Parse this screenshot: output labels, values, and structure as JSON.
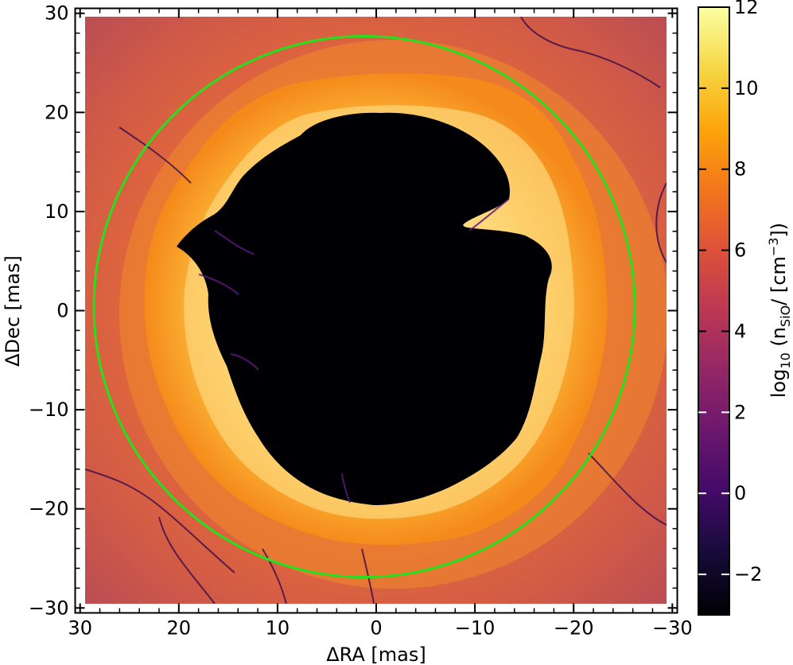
{
  "chart_data": {
    "type": "heatmap",
    "title": "",
    "xlabel": "ΔRA [mas]",
    "ylabel": "ΔDec [mas]",
    "xlim": [
      30.5,
      -30.5
    ],
    "ylim": [
      -30.5,
      30.5
    ],
    "x_ticks": [
      30,
      20,
      10,
      0,
      -10,
      -20,
      -30
    ],
    "x_tick_labels": [
      "30",
      "20",
      "10",
      "0",
      "−10",
      "−20",
      "−30"
    ],
    "y_ticks": [
      30,
      20,
      10,
      0,
      -10,
      -20,
      -30
    ],
    "y_tick_labels": [
      "30",
      "20",
      "10",
      "0",
      "−10",
      "−20",
      "−30"
    ],
    "grid": false,
    "colormap": "inferno",
    "colorbar": {
      "label_main": "log",
      "label_sub1": "10",
      "label_mid": " (n",
      "label_sub2": "SiO",
      "label_unit": "/ [cm",
      "label_sup": "−3",
      "label_end": "])",
      "vmin": -3,
      "vmax": 12,
      "ticks": [
        -2,
        0,
        2,
        4,
        6,
        8,
        10,
        12
      ],
      "tick_labels": [
        "−2",
        "0",
        "2",
        "4",
        "6",
        "8",
        "10",
        "12"
      ]
    },
    "circle": {
      "center_x": 1.2,
      "center_y": 0.4,
      "radius": 27.4,
      "color": "#22e21e"
    },
    "colors": {
      "background": "#c6544f",
      "shell_inner": "#fcc85a",
      "shell_outer": "#f58a1a",
      "hole": "#000004"
    }
  }
}
